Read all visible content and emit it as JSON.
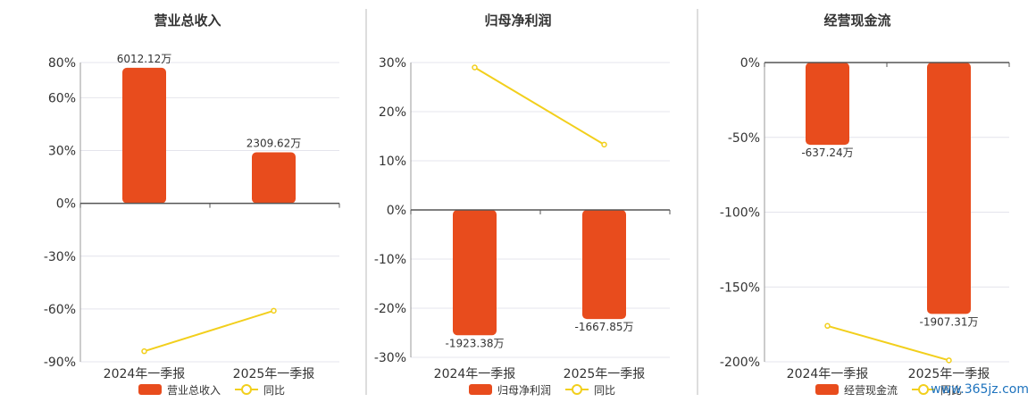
{
  "chart_data": [
    {
      "type": "bar",
      "title": "营业总收入",
      "categories": [
        "2024年一季报",
        "2025年一季报"
      ],
      "series": [
        {
          "name": "营业总收入",
          "type": "bar",
          "values": [
            77,
            29
          ],
          "labels": [
            "6012.12万",
            "2309.62万"
          ]
        },
        {
          "name": "同比",
          "type": "line",
          "values": [
            -84,
            -61
          ]
        }
      ],
      "ylim": [
        -90,
        80
      ],
      "yticks": [
        80,
        60,
        30,
        0,
        -30,
        -60,
        -90
      ],
      "ytick_labels": [
        "80%",
        "60%",
        "30%",
        "0%",
        "-30%",
        "-60%",
        "-90%"
      ],
      "grid": true,
      "legend_position": "bottom"
    },
    {
      "type": "bar",
      "title": "归母净利润",
      "categories": [
        "2024年一季报",
        "2025年一季报"
      ],
      "series": [
        {
          "name": "归母净利润",
          "type": "bar",
          "values": [
            -25.5,
            -22.2
          ],
          "labels": [
            "-1923.38万",
            "-1667.85万"
          ]
        },
        {
          "name": "同比",
          "type": "line",
          "values": [
            29,
            13.3
          ]
        }
      ],
      "ylim": [
        -30,
        30
      ],
      "yticks": [
        30,
        20,
        10,
        0,
        -10,
        -20,
        -30
      ],
      "ytick_labels": [
        "30%",
        "20%",
        "10%",
        "0%",
        "-10%",
        "-20%",
        "-30%"
      ],
      "grid": true,
      "legend_position": "bottom"
    },
    {
      "type": "bar",
      "title": "经营现金流",
      "categories": [
        "2024年一季报",
        "2025年一季报"
      ],
      "series": [
        {
          "name": "经营现金流",
          "type": "bar",
          "values": [
            -55,
            -168
          ],
          "labels": [
            "-637.24万",
            "-1907.31万"
          ]
        },
        {
          "name": "同比",
          "type": "line",
          "values": [
            -176,
            -199
          ]
        }
      ],
      "ylim": [
        -200,
        0
      ],
      "yticks": [
        0,
        -50,
        -100,
        -150,
        -200
      ],
      "ytick_labels": [
        "0%",
        "-50%",
        "-100%",
        "-150%",
        "-200%"
      ],
      "grid": true,
      "legend_position": "bottom"
    }
  ],
  "colors": {
    "bar": "#e84c1d",
    "line": "#f2cf1c",
    "grid": "#e4e4ec",
    "axis": "#555555",
    "text": "#333333",
    "divider": "#bbbbbb"
  },
  "watermark": "www.365jz.com"
}
